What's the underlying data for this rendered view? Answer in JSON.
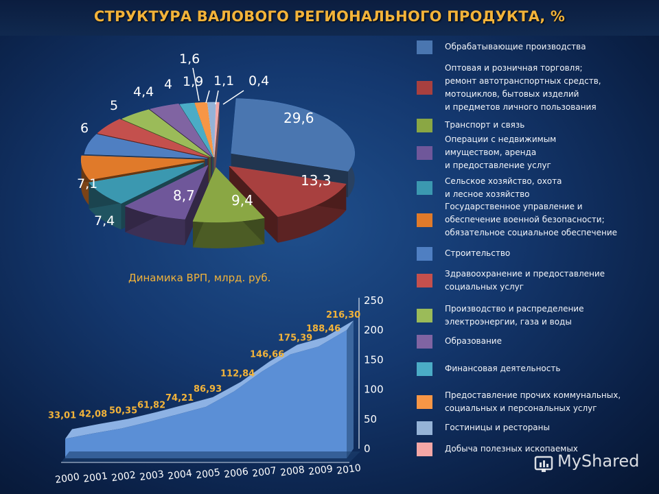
{
  "title": "СТРУКТУРА ВАЛОВОГО РЕГИОНАЛЬНОГО ПРОДУКТА, %",
  "watermark": "MyShared",
  "chart_data": [
    {
      "type": "pie",
      "title": "СТРУКТУРА ВАЛОВОГО РЕГИОНАЛЬНОГО ПРОДУКТА, %",
      "legend_position": "right",
      "slices": [
        {
          "label": "Обрабатывающие производства",
          "value": 29.6,
          "display": "29,6",
          "color": "#4a76b0"
        },
        {
          "label": "Оптовая и розничная торговля;\nремонт автотранспортных средств,\nмотоциклов, бытовых изделий\nи предметов личного пользования",
          "value": 13.3,
          "display": "13,3",
          "color": "#a8403f"
        },
        {
          "label": "Транспорт и связь",
          "value": 9.4,
          "display": "9,4",
          "color": "#8aa744"
        },
        {
          "label": "Операции с недвижимым\nимуществом, аренда\nи предоставление услуг",
          "value": 8.7,
          "display": "8,7",
          "color": "#6f579a"
        },
        {
          "label": "Сельское хозяйство, охота\nи лесное хозяйство",
          "value": 7.4,
          "display": "7,4",
          "color": "#3b98b0"
        },
        {
          "label": "Государственное управление и\nобеспечение военной безопасности;\nобязательное социальное обеспечение",
          "value": 7.1,
          "display": "7,1",
          "color": "#e07a2a"
        },
        {
          "label": "Строительство",
          "value": 6,
          "display": "6",
          "color": "#4f7fc2"
        },
        {
          "label": "Здравоохранение и предоставление\nсоциальных услуг",
          "value": 5,
          "display": "5",
          "color": "#c4504d"
        },
        {
          "label": "Производство и распределение\nэлектроэнергии, газа и воды",
          "value": 4.4,
          "display": "4,4",
          "color": "#9bbb59"
        },
        {
          "label": "Образование",
          "value": 4,
          "display": "4",
          "color": "#8064a2"
        },
        {
          "label": "Финансовая деятельность",
          "value": 1.9,
          "display": "1,9",
          "color": "#4bacc6"
        },
        {
          "label": "Предоставление прочих коммунальных,\nсоциальных и персональных услуг",
          "value": 1.6,
          "display": "1,6",
          "color": "#f79646"
        },
        {
          "label": "Гостиницы и рестораны",
          "value": 1.1,
          "display": "1,1",
          "color": "#95b3d7"
        },
        {
          "label": "Добыча полезных ископаемых",
          "value": 0.4,
          "display": "0,4",
          "color": "#f4a7a6"
        }
      ]
    },
    {
      "type": "area",
      "title": "Динамика ВРП, млрд. руб.",
      "categories": [
        "2000",
        "2001",
        "2002",
        "2003",
        "2004",
        "2005",
        "2006",
        "2007",
        "2008",
        "2009",
        "2010"
      ],
      "values": [
        33.01,
        42.08,
        50.35,
        61.82,
        74.21,
        86.93,
        112.84,
        146.66,
        175.39,
        188.46,
        216.3
      ],
      "data_labels": [
        "33,01",
        "42,08",
        "50,35",
        "61,82",
        "74,21",
        "86,93",
        "112,84",
        "146,66",
        "175,39",
        "188,46",
        "216,30"
      ],
      "yticks": [
        "0",
        "50",
        "100",
        "150",
        "200",
        "250"
      ],
      "ylim": [
        0,
        250
      ],
      "color": "#5b8fd6",
      "label_color": "#f2b33a"
    }
  ]
}
